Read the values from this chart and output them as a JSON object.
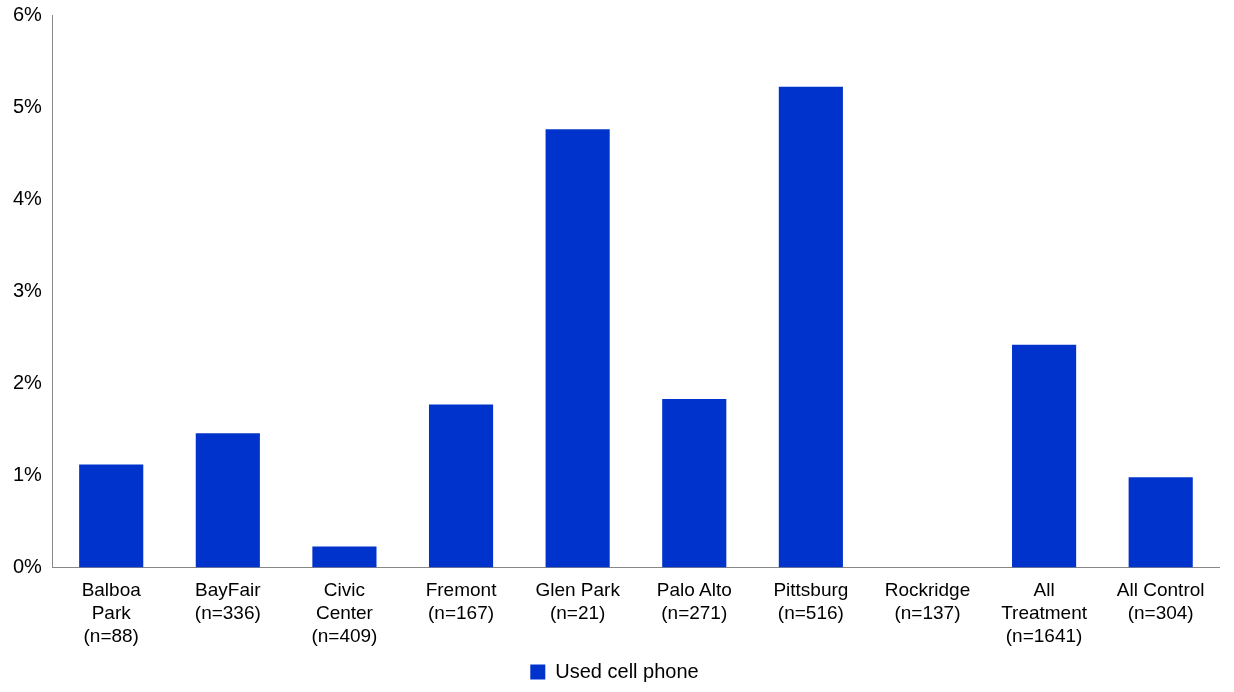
{
  "chart_data": {
    "type": "bar",
    "categories": [
      "Balboa Park (n=88)",
      "BayFair (n=336)",
      "Civic Center (n=409)",
      "Fremont (n=167)",
      "Glen Park (n=21)",
      "Palo Alto (n=271)",
      "Pittsburg (n=516)",
      "Rockridge (n=137)",
      "All Treatment (n=1641)",
      "All Control (n=304)"
    ],
    "series": [
      {
        "name": "Used cell phone",
        "color": "#0033cc",
        "values": [
          1.12,
          1.46,
          0.23,
          1.77,
          4.76,
          1.83,
          5.22,
          0,
          2.42,
          0.98
        ]
      }
    ],
    "ylim": [
      0,
      6
    ],
    "yticks": [
      {
        "value": 0,
        "label": "0%"
      },
      {
        "value": 1,
        "label": "1%"
      },
      {
        "value": 2,
        "label": "2%"
      },
      {
        "value": 3,
        "label": "3%"
      },
      {
        "value": 4,
        "label": "4%"
      },
      {
        "value": 5,
        "label": "5%"
      },
      {
        "value": 6,
        "label": "6%"
      }
    ],
    "grid": false,
    "legend": "bottom"
  }
}
